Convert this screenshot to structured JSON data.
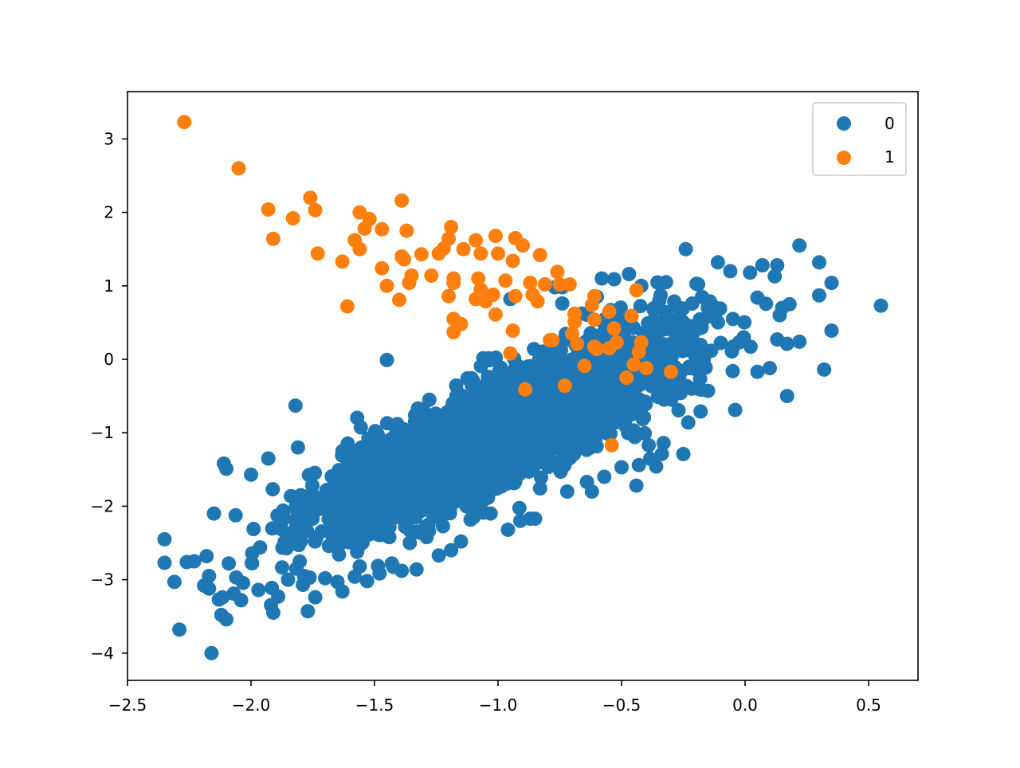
{
  "chart_data": {
    "type": "scatter",
    "title": "",
    "xlabel": "",
    "ylabel": "",
    "xlim": [
      -2.5,
      0.7
    ],
    "ylim": [
      -4.35,
      3.65
    ],
    "xticks": [
      -2.5,
      -2.0,
      -1.5,
      -1.0,
      -0.5,
      0.0,
      0.5
    ],
    "xtick_labels": [
      "−2.5",
      "−2.0",
      "−1.5",
      "−1.0",
      "−0.5",
      "0.0",
      "0.5"
    ],
    "yticks": [
      3,
      2,
      1,
      0,
      -1,
      -2,
      -3,
      -4
    ],
    "ytick_labels": [
      "3",
      "2",
      "1",
      "0",
      "−1",
      "−2",
      "−3",
      "−4"
    ],
    "grid": false,
    "legend_position": "upper right",
    "legend": [
      {
        "label": "0",
        "color": "#1f77b4"
      },
      {
        "label": "1",
        "color": "#ff7f0e"
      }
    ],
    "series": [
      {
        "name": "0",
        "color": "#1f77b4",
        "note": "dense elongated cloud (thousands of points) along y ≈ 1.6x + 0.6; outliers listed",
        "core": {
          "x_range": [
            -2.1,
            0.1
          ],
          "slope": 1.55,
          "intercept": 0.55,
          "spread": 0.38,
          "count": 2600,
          "seed": 7
        },
        "points": [
          [
            -2.35,
            -2.45
          ],
          [
            -2.35,
            -2.77
          ],
          [
            -2.31,
            -3.03
          ],
          [
            -2.29,
            -3.68
          ],
          [
            -2.26,
            -2.76
          ],
          [
            -2.23,
            -2.75
          ],
          [
            -2.19,
            -3.08
          ],
          [
            -2.18,
            -2.68
          ],
          [
            -2.17,
            -3.12
          ],
          [
            -2.17,
            -2.95
          ],
          [
            -2.16,
            -4.0
          ],
          [
            -2.15,
            -2.1
          ],
          [
            -2.13,
            -3.27
          ],
          [
            -2.12,
            -3.48
          ],
          [
            -2.11,
            -1.42
          ],
          [
            -2.1,
            -1.49
          ],
          [
            -2.1,
            -3.54
          ],
          [
            -2.09,
            -2.78
          ],
          [
            -2.07,
            -3.19
          ],
          [
            -2.06,
            -2.97
          ],
          [
            -2.04,
            -3.28
          ],
          [
            -2.0,
            -1.57
          ],
          [
            -1.97,
            -3.14
          ],
          [
            -1.93,
            -1.35
          ],
          [
            -1.91,
            -3.45
          ],
          [
            -1.89,
            -3.23
          ],
          [
            -1.87,
            -2.06
          ],
          [
            -1.85,
            -3.0
          ],
          [
            -1.82,
            -0.63
          ],
          [
            -1.81,
            -1.2
          ],
          [
            -1.79,
            -3.07
          ],
          [
            -1.77,
            -3.43
          ],
          [
            -1.74,
            -3.24
          ],
          [
            -1.7,
            -2.98
          ],
          [
            -1.65,
            -3.03
          ],
          [
            -1.63,
            -3.16
          ],
          [
            -1.58,
            -2.96
          ],
          [
            -1.56,
            -2.82
          ],
          [
            -1.53,
            -3.02
          ],
          [
            -1.45,
            -0.01
          ],
          [
            -1.43,
            -2.78
          ],
          [
            -1.39,
            -2.88
          ],
          [
            -1.33,
            -2.86
          ],
          [
            -1.28,
            -2.34
          ],
          [
            -1.24,
            -2.67
          ],
          [
            -1.19,
            -2.6
          ],
          [
            -1.15,
            -2.48
          ],
          [
            -1.03,
            -2.1
          ],
          [
            -0.96,
            -2.32
          ],
          [
            -0.91,
            -2.2
          ],
          [
            -0.87,
            -2.17
          ],
          [
            -0.85,
            -2.17
          ],
          [
            -0.72,
            -1.8
          ],
          [
            -0.64,
            -1.67
          ],
          [
            -0.62,
            -1.8
          ],
          [
            -0.57,
            -1.6
          ],
          [
            -0.5,
            -1.47
          ],
          [
            -0.44,
            -1.72
          ],
          [
            -0.43,
            -1.44
          ],
          [
            -0.39,
            -1.17
          ],
          [
            -0.36,
            -1.46
          ],
          [
            -0.33,
            -1.14
          ],
          [
            -0.25,
            -1.29
          ],
          [
            -0.23,
            -0.86
          ],
          [
            -0.18,
            -0.71
          ],
          [
            -0.15,
            -0.43
          ],
          [
            -0.04,
            -0.69
          ],
          [
            -0.05,
            -0.16
          ],
          [
            0.05,
            -0.17
          ],
          [
            0.1,
            -0.12
          ],
          [
            0.17,
            -0.5
          ],
          [
            0.32,
            -0.14
          ],
          [
            0.55,
            0.73
          ],
          [
            0.35,
            0.39
          ],
          [
            0.35,
            1.04
          ],
          [
            0.3,
            0.87
          ],
          [
            0.3,
            1.32
          ],
          [
            0.22,
            1.55
          ],
          [
            0.22,
            0.24
          ],
          [
            0.18,
            0.75
          ],
          [
            0.17,
            0.21
          ],
          [
            0.15,
            0.7
          ],
          [
            0.14,
            0.6
          ],
          [
            0.13,
            0.27
          ],
          [
            0.13,
            1.28
          ],
          [
            0.12,
            1.13
          ],
          [
            0.07,
            1.28
          ],
          [
            0.05,
            0.84
          ],
          [
            0.02,
            1.18
          ],
          [
            -0.06,
            1.2
          ],
          [
            -0.11,
            1.32
          ],
          [
            -0.19,
            1.02
          ],
          [
            -0.24,
            1.5
          ],
          [
            -0.32,
            1.05
          ],
          [
            -0.42,
            1.0
          ],
          [
            -0.47,
            1.16
          ],
          [
            -0.53,
            1.09
          ],
          [
            -0.58,
            1.1
          ],
          [
            -0.6,
            0.85
          ],
          [
            -0.74,
            0.98
          ],
          [
            -0.77,
            0.98
          ],
          [
            -0.74,
            0.76
          ],
          [
            -0.95,
            0.82
          ]
        ]
      },
      {
        "name": "1",
        "color": "#ff7f0e",
        "points": [
          [
            -2.27,
            3.23
          ],
          [
            -2.05,
            2.6
          ],
          [
            -1.76,
            2.2
          ],
          [
            -1.93,
            2.04
          ],
          [
            -1.83,
            1.92
          ],
          [
            -1.74,
            2.03
          ],
          [
            -1.91,
            1.64
          ],
          [
            -1.73,
            1.44
          ],
          [
            -1.63,
            1.33
          ],
          [
            -1.61,
            0.72
          ],
          [
            -1.56,
            2.0
          ],
          [
            -1.52,
            1.91
          ],
          [
            -1.54,
            1.78
          ],
          [
            -1.58,
            1.62
          ],
          [
            -1.56,
            1.5
          ],
          [
            -1.47,
            1.77
          ],
          [
            -1.39,
            2.16
          ],
          [
            -1.37,
            1.75
          ],
          [
            -1.47,
            1.24
          ],
          [
            -1.39,
            1.4
          ],
          [
            -1.38,
            1.36
          ],
          [
            -1.45,
            1.0
          ],
          [
            -1.35,
            1.14
          ],
          [
            -1.36,
            1.04
          ],
          [
            -1.4,
            0.81
          ],
          [
            -1.31,
            1.43
          ],
          [
            -1.27,
            1.14
          ],
          [
            -1.24,
            1.44
          ],
          [
            -1.22,
            1.51
          ],
          [
            -1.2,
            1.64
          ],
          [
            -1.19,
            1.8
          ],
          [
            -1.18,
            1.1
          ],
          [
            -1.18,
            1.04
          ],
          [
            -1.2,
            0.86
          ],
          [
            -1.18,
            0.55
          ],
          [
            -1.15,
            0.48
          ],
          [
            -1.18,
            0.37
          ],
          [
            -1.14,
            1.5
          ],
          [
            -1.09,
            1.62
          ],
          [
            -1.07,
            1.44
          ],
          [
            -1.08,
            1.1
          ],
          [
            -1.07,
            0.95
          ],
          [
            -1.09,
            0.82
          ],
          [
            -1.05,
            0.79
          ],
          [
            -1.02,
            0.88
          ],
          [
            -1.01,
            0.61
          ],
          [
            -1.01,
            1.68
          ],
          [
            -1.0,
            1.44
          ],
          [
            -0.97,
            1.07
          ],
          [
            -0.94,
            1.34
          ],
          [
            -0.93,
            1.65
          ],
          [
            -0.9,
            1.55
          ],
          [
            -0.93,
            0.86
          ],
          [
            -0.94,
            0.39
          ],
          [
            -0.95,
            0.08
          ],
          [
            -0.87,
            1.04
          ],
          [
            -0.86,
            0.88
          ],
          [
            -0.84,
            0.79
          ],
          [
            -0.83,
            1.42
          ],
          [
            -0.81,
            1.02
          ],
          [
            -0.76,
            1.19
          ],
          [
            -0.75,
            1.02
          ],
          [
            -0.71,
            1.02
          ],
          [
            -0.89,
            -0.41
          ],
          [
            -0.79,
            0.26
          ],
          [
            -0.78,
            0.26
          ],
          [
            -0.73,
            -0.36
          ],
          [
            -0.69,
            0.62
          ],
          [
            -0.69,
            0.51
          ],
          [
            -0.7,
            0.35
          ],
          [
            -0.68,
            0.21
          ],
          [
            -0.65,
            -0.09
          ],
          [
            -0.62,
            0.74
          ],
          [
            -0.61,
            0.86
          ],
          [
            -0.61,
            0.54
          ],
          [
            -0.61,
            0.17
          ],
          [
            -0.6,
            0.14
          ],
          [
            -0.55,
            0.65
          ],
          [
            -0.53,
            0.42
          ],
          [
            -0.55,
            0.15
          ],
          [
            -0.52,
            0.23
          ],
          [
            -0.44,
            0.94
          ],
          [
            -0.46,
            0.59
          ],
          [
            -0.43,
            0.1
          ],
          [
            -0.42,
            0.23
          ],
          [
            -0.45,
            -0.07
          ],
          [
            -0.4,
            -0.12
          ],
          [
            -0.48,
            -0.25
          ],
          [
            -0.3,
            -0.17
          ],
          [
            -0.54,
            -1.17
          ]
        ]
      }
    ]
  }
}
